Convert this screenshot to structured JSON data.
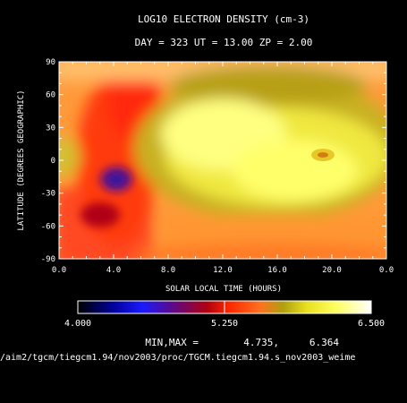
{
  "chart_data": {
    "type": "heatmap",
    "title": "LOG10 ELECTRON DENSITY (cm-3)",
    "subtitle": "DAY = 323   UT = 13.00   ZP =    2.00",
    "xlabel": "SOLAR LOCAL TIME (HOURS)",
    "ylabel": "LATITUDE (DEGREES GEOGRAPHIC)",
    "xlim": [
      0.0,
      24.0
    ],
    "ylim": [
      -90,
      90
    ],
    "x_ticks": [
      "0.0",
      "4.0",
      "8.0",
      "12.0",
      "16.0",
      "20.0",
      "0.0"
    ],
    "y_ticks": [
      "90",
      "60",
      "30",
      "0",
      "-30",
      "-60",
      "-90"
    ],
    "colorbar": {
      "min": 4.0,
      "max": 6.5,
      "ticks": [
        "4.000",
        "5.250",
        "6.500"
      ]
    },
    "minmax_label": "MIN,MAX =",
    "min_value": "4.735,",
    "max_value": "6.364",
    "footer_path": "/aim2/tgcm/tiegcm1.94/nov2003/proc/TGCM.tiegcm1.94.s_nov2003_weime"
  }
}
